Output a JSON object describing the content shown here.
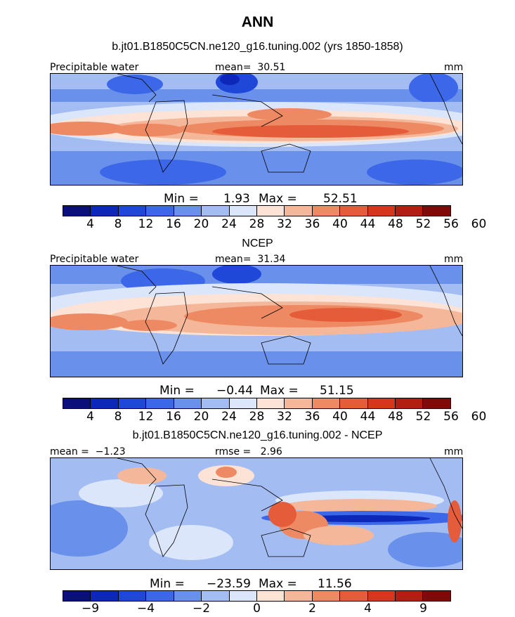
{
  "title": "ANN",
  "case_title": "b.jt01.B1850C5CN.ne120_g16.tuning.002 (yrs 1850-1858)",
  "palette": [
    "#0a0f7a",
    "#0d27b8",
    "#1f47d8",
    "#3b67e8",
    "#6990ea",
    "#a3bdf3",
    "#dbe6fb",
    "#fde3d5",
    "#f5b79a",
    "#ee8a63",
    "#e55c3a",
    "#d5361d",
    "#b21f12",
    "#7f0a07"
  ],
  "panels": [
    {
      "title": "",
      "left_label": "Precipitable water",
      "center_label": "mean=  30.51",
      "units": "mm",
      "min_label": "Min =",
      "min_value": "1.93",
      "max_label": "Max =",
      "max_value": "52.51",
      "ticks": [
        "4",
        "8",
        "12",
        "16",
        "20",
        "24",
        "28",
        "32",
        "36",
        "40",
        "44",
        "48",
        "52",
        "56",
        "60"
      ],
      "icon": "model-precipitable-water-map"
    },
    {
      "title": "NCEP",
      "left_label": "Precipitable water",
      "center_label": "mean=  31.34",
      "units": "mm",
      "min_label": "Min =",
      "min_value": "−0.44",
      "max_label": "Max =",
      "max_value": "51.15",
      "ticks": [
        "4",
        "8",
        "12",
        "16",
        "20",
        "24",
        "28",
        "32",
        "36",
        "40",
        "44",
        "48",
        "52",
        "56",
        "60"
      ],
      "icon": "ncep-precipitable-water-map"
    },
    {
      "title": "b.jt01.B1850C5CN.ne120_g16.tuning.002 - NCEP",
      "left_label": "mean =  −1.23",
      "center_label": "rmse =   2.96",
      "units": "mm",
      "min_label": "Min =",
      "min_value": "−23.59",
      "max_label": "Max =",
      "max_value": "11.56",
      "ticks": [
        "−9",
        "−4",
        "−2",
        "0",
        "2",
        "4",
        "9"
      ],
      "icon": "difference-map"
    }
  ]
}
